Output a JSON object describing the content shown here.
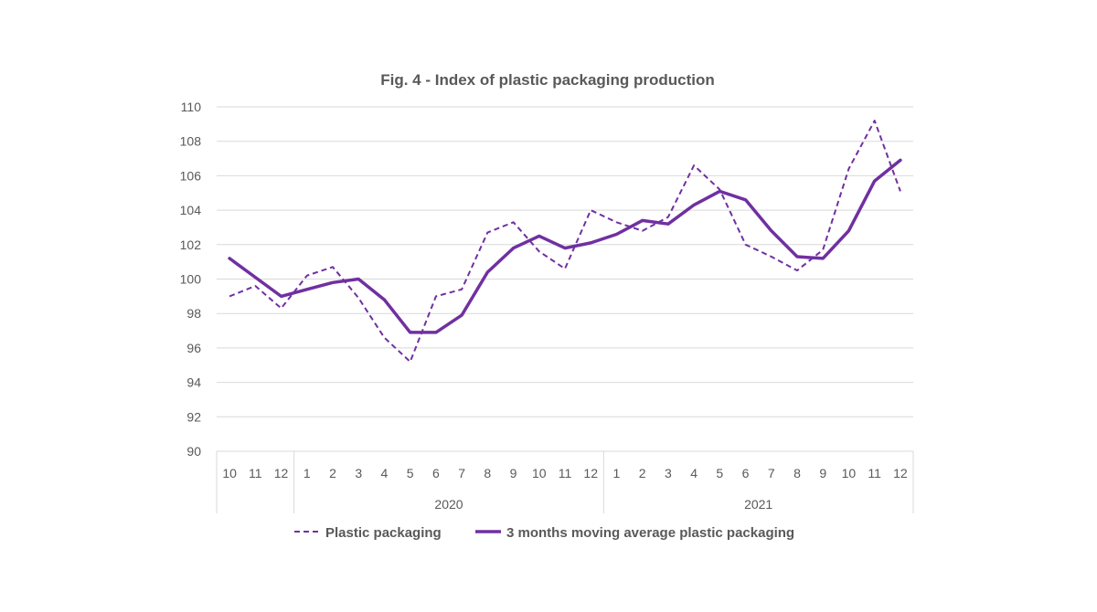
{
  "chart_data": {
    "type": "line",
    "title": "Fig. 4  - Index of plastic packaging production",
    "xlabel": "",
    "ylabel": "",
    "ylim": [
      90,
      110
    ],
    "yticks": [
      "90",
      "92",
      "94",
      "96",
      "98",
      "100",
      "102",
      "104",
      "106",
      "108",
      "110"
    ],
    "categories": [
      "10",
      "11",
      "12",
      "1",
      "2",
      "3",
      "4",
      "5",
      "6",
      "7",
      "8",
      "9",
      "10",
      "11",
      "12",
      "1",
      "2",
      "3",
      "4",
      "5",
      "6",
      "7",
      "8",
      "9",
      "10",
      "11",
      "12"
    ],
    "year_groups": [
      {
        "label": "",
        "start": 0,
        "end": 2
      },
      {
        "label": "2020",
        "start": 3,
        "end": 14
      },
      {
        "label": "2021",
        "start": 15,
        "end": 26
      }
    ],
    "grid": true,
    "legend_position": "bottom",
    "series": [
      {
        "name": "Plastic packaging",
        "style": "dashed",
        "color": "#7030A0",
        "values": [
          99.0,
          99.6,
          98.3,
          100.2,
          100.7,
          98.9,
          96.6,
          95.2,
          99.0,
          99.4,
          102.7,
          103.3,
          101.6,
          100.6,
          104.0,
          103.3,
          102.8,
          103.6,
          106.6,
          105.2,
          102.0,
          101.3,
          100.5,
          101.7,
          106.4,
          109.2,
          105.1
        ]
      },
      {
        "name": "3 months moving average plastic packaging",
        "style": "solid",
        "color": "#7030A0",
        "values": [
          101.2,
          100.1,
          99.0,
          99.4,
          99.8,
          100.0,
          98.8,
          96.9,
          96.9,
          97.9,
          100.4,
          101.8,
          102.5,
          101.8,
          102.1,
          102.6,
          103.4,
          103.2,
          104.3,
          105.1,
          104.6,
          102.8,
          101.3,
          101.2,
          102.8,
          105.7,
          106.9
        ]
      }
    ]
  }
}
